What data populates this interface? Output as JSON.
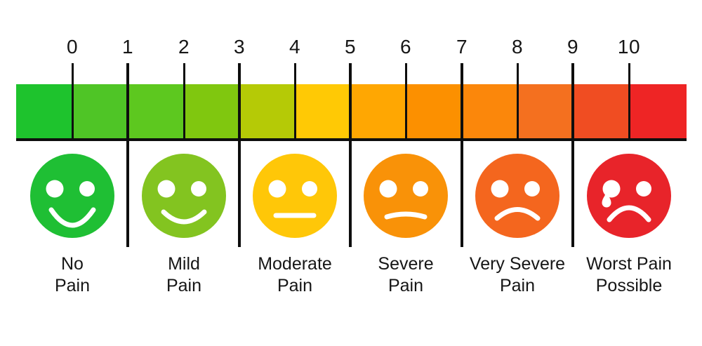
{
  "scale": {
    "numbers": [
      "0",
      "1",
      "2",
      "3",
      "4",
      "5",
      "6",
      "7",
      "8",
      "9",
      "10"
    ],
    "segment_colors": [
      "#1EC32D",
      "#4FC526",
      "#5DC81F",
      "#80C70F",
      "#B5CA06",
      "#FFC905",
      "#FFA702",
      "#FC9000",
      "#FB870B",
      "#F4701F",
      "#F04D22",
      "#EE2525"
    ],
    "line_color": "#0E0E0E",
    "text_color": "#161616"
  },
  "faces": [
    {
      "label": [
        "No",
        "Pain"
      ],
      "color": "#1FBF34",
      "expression": "smile-big",
      "tear": false
    },
    {
      "label": [
        "Mild",
        "Pain"
      ],
      "color": "#83C420",
      "expression": "smile",
      "tear": false
    },
    {
      "label": [
        "Moderate",
        "Pain"
      ],
      "color": "#FFC708",
      "expression": "flat",
      "tear": false
    },
    {
      "label": [
        "Severe",
        "Pain"
      ],
      "color": "#F99208",
      "expression": "flat-frown",
      "tear": false
    },
    {
      "label": [
        "Very Severe",
        "Pain"
      ],
      "color": "#F4661E",
      "expression": "frown",
      "tear": false
    },
    {
      "label": [
        "Worst Pain",
        "Possible"
      ],
      "color": "#E8242A",
      "expression": "frown-deep",
      "tear": true
    }
  ],
  "colors": {
    "background": "#FFFFFF",
    "eye": "#FFFFFF",
    "mouth": "#FFFFFF"
  }
}
